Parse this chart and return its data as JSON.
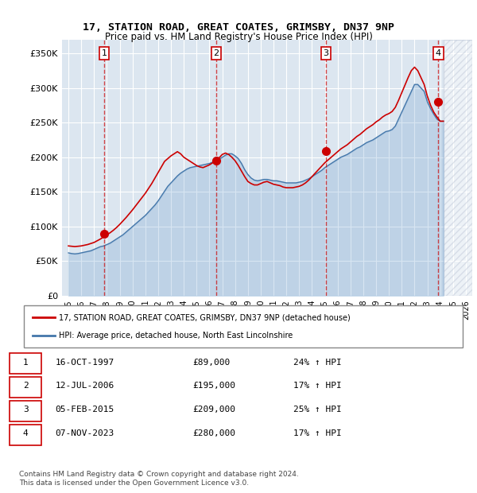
{
  "title1": "17, STATION ROAD, GREAT COATES, GRIMSBY, DN37 9NP",
  "title2": "Price paid vs. HM Land Registry's House Price Index (HPI)",
  "ylabel": "",
  "background_color": "#dce6f0",
  "plot_bg_color": "#dce6f0",
  "hatch_color": "#c0c8d8",
  "ylim": [
    0,
    370000
  ],
  "yticks": [
    0,
    50000,
    100000,
    150000,
    200000,
    250000,
    300000,
    350000
  ],
  "ytick_labels": [
    "£0",
    "£50K",
    "£100K",
    "£150K",
    "£200K",
    "£250K",
    "£300K",
    "£350K"
  ],
  "xlim_start": 1994.5,
  "xlim_end": 2026.5,
  "xticks": [
    1995,
    1996,
    1997,
    1998,
    1999,
    2000,
    2001,
    2002,
    2003,
    2004,
    2005,
    2006,
    2007,
    2008,
    2009,
    2010,
    2011,
    2012,
    2013,
    2014,
    2015,
    2016,
    2017,
    2018,
    2019,
    2020,
    2021,
    2022,
    2023,
    2024,
    2025,
    2026
  ],
  "sale_dates": [
    1997.79,
    2006.53,
    2015.09,
    2023.85
  ],
  "sale_prices": [
    89000,
    195000,
    209000,
    280000
  ],
  "sale_numbers": [
    "1",
    "2",
    "3",
    "4"
  ],
  "red_line_color": "#cc0000",
  "blue_line_color": "#6699cc",
  "hpi_line_color": "#4477aa",
  "sale_marker_color": "#cc0000",
  "legend_label1": "17, STATION ROAD, GREAT COATES, GRIMSBY, DN37 9NP (detached house)",
  "legend_label2": "HPI: Average price, detached house, North East Lincolnshire",
  "table_entries": [
    {
      "num": "1",
      "date": "16-OCT-1997",
      "price": "£89,000",
      "hpi": "24% ↑ HPI"
    },
    {
      "num": "2",
      "date": "12-JUL-2006",
      "price": "£195,000",
      "hpi": "17% ↑ HPI"
    },
    {
      "num": "3",
      "date": "05-FEB-2015",
      "price": "£209,000",
      "hpi": "25% ↑ HPI"
    },
    {
      "num": "4",
      "date": "07-NOV-2023",
      "price": "£280,000",
      "hpi": "17% ↑ HPI"
    }
  ],
  "footnote": "Contains HM Land Registry data © Crown copyright and database right 2024.\nThis data is licensed under the Open Government Licence v3.0.",
  "hpi_data_x": [
    1995.0,
    1995.25,
    1995.5,
    1995.75,
    1996.0,
    1996.25,
    1996.5,
    1996.75,
    1997.0,
    1997.25,
    1997.5,
    1997.75,
    1998.0,
    1998.25,
    1998.5,
    1998.75,
    1999.0,
    1999.25,
    1999.5,
    1999.75,
    2000.0,
    2000.25,
    2000.5,
    2000.75,
    2001.0,
    2001.25,
    2001.5,
    2001.75,
    2002.0,
    2002.25,
    2002.5,
    2002.75,
    2003.0,
    2003.25,
    2003.5,
    2003.75,
    2004.0,
    2004.25,
    2004.5,
    2004.75,
    2005.0,
    2005.25,
    2005.5,
    2005.75,
    2006.0,
    2006.25,
    2006.5,
    2006.75,
    2007.0,
    2007.25,
    2007.5,
    2007.75,
    2008.0,
    2008.25,
    2008.5,
    2008.75,
    2009.0,
    2009.25,
    2009.5,
    2009.75,
    2010.0,
    2010.25,
    2010.5,
    2010.75,
    2011.0,
    2011.25,
    2011.5,
    2011.75,
    2012.0,
    2012.25,
    2012.5,
    2012.75,
    2013.0,
    2013.25,
    2013.5,
    2013.75,
    2014.0,
    2014.25,
    2014.5,
    2014.75,
    2015.0,
    2015.25,
    2015.5,
    2015.75,
    2016.0,
    2016.25,
    2016.5,
    2016.75,
    2017.0,
    2017.25,
    2017.5,
    2017.75,
    2018.0,
    2018.25,
    2018.5,
    2018.75,
    2019.0,
    2019.25,
    2019.5,
    2019.75,
    2020.0,
    2020.25,
    2020.5,
    2020.75,
    2021.0,
    2021.25,
    2021.5,
    2021.75,
    2022.0,
    2022.25,
    2022.5,
    2022.75,
    2023.0,
    2023.25,
    2023.5,
    2023.75,
    2024.0,
    2024.25
  ],
  "hpi_data_y": [
    62000,
    61000,
    60500,
    61000,
    62000,
    63000,
    64000,
    65000,
    67000,
    69000,
    71000,
    72000,
    74000,
    76000,
    79000,
    82000,
    85000,
    88000,
    92000,
    96000,
    100000,
    104000,
    108000,
    112000,
    116000,
    121000,
    126000,
    131000,
    137000,
    144000,
    151000,
    158000,
    163000,
    168000,
    173000,
    177000,
    180000,
    183000,
    185000,
    186000,
    187000,
    188000,
    189000,
    190000,
    191000,
    193000,
    195000,
    197000,
    200000,
    203000,
    205000,
    205000,
    202000,
    198000,
    191000,
    182000,
    175000,
    170000,
    167000,
    166000,
    167000,
    168000,
    168000,
    167000,
    166000,
    166000,
    165000,
    164000,
    163000,
    163000,
    163000,
    163000,
    164000,
    165000,
    167000,
    169000,
    172000,
    175000,
    178000,
    181000,
    185000,
    188000,
    191000,
    194000,
    197000,
    200000,
    202000,
    204000,
    207000,
    210000,
    213000,
    215000,
    218000,
    221000,
    223000,
    225000,
    228000,
    231000,
    234000,
    237000,
    238000,
    240000,
    245000,
    255000,
    265000,
    275000,
    285000,
    295000,
    305000,
    305000,
    300000,
    295000,
    280000,
    270000,
    262000,
    255000,
    252000,
    252000
  ],
  "red_line_x": [
    1995.0,
    1995.25,
    1995.5,
    1995.75,
    1996.0,
    1996.25,
    1996.5,
    1996.75,
    1997.0,
    1997.25,
    1997.5,
    1997.75,
    1998.0,
    1998.25,
    1998.5,
    1998.75,
    1999.0,
    1999.25,
    1999.5,
    1999.75,
    2000.0,
    2000.25,
    2000.5,
    2000.75,
    2001.0,
    2001.25,
    2001.5,
    2001.75,
    2002.0,
    2002.25,
    2002.5,
    2002.75,
    2003.0,
    2003.25,
    2003.5,
    2003.75,
    2004.0,
    2004.25,
    2004.5,
    2004.75,
    2005.0,
    2005.25,
    2005.5,
    2005.75,
    2006.0,
    2006.25,
    2006.5,
    2006.75,
    2007.0,
    2007.25,
    2007.5,
    2007.75,
    2008.0,
    2008.25,
    2008.5,
    2008.75,
    2009.0,
    2009.25,
    2009.5,
    2009.75,
    2010.0,
    2010.25,
    2010.5,
    2010.75,
    2011.0,
    2011.25,
    2011.5,
    2011.75,
    2012.0,
    2012.25,
    2012.5,
    2012.75,
    2013.0,
    2013.25,
    2013.5,
    2013.75,
    2014.0,
    2014.25,
    2014.5,
    2014.75,
    2015.0,
    2015.25,
    2015.5,
    2015.75,
    2016.0,
    2016.25,
    2016.5,
    2016.75,
    2017.0,
    2017.25,
    2017.5,
    2017.75,
    2018.0,
    2018.25,
    2018.5,
    2018.75,
    2019.0,
    2019.25,
    2019.5,
    2019.75,
    2020.0,
    2020.25,
    2020.5,
    2020.75,
    2021.0,
    2021.25,
    2021.5,
    2021.75,
    2022.0,
    2022.25,
    2022.5,
    2022.75,
    2023.0,
    2023.25,
    2023.5,
    2023.75,
    2024.0,
    2024.25
  ],
  "red_line_y": [
    72000,
    71500,
    71000,
    71500,
    72000,
    73000,
    74000,
    75500,
    77000,
    79500,
    82000,
    85000,
    88000,
    91000,
    94500,
    98500,
    103000,
    108000,
    113000,
    118500,
    124000,
    130000,
    136000,
    142000,
    148000,
    155000,
    162000,
    170000,
    178000,
    186000,
    194000,
    198000,
    202000,
    205000,
    208000,
    205000,
    200000,
    197000,
    194000,
    191000,
    188000,
    186000,
    185000,
    187000,
    189000,
    192000,
    195000,
    199000,
    204000,
    206000,
    204000,
    200000,
    195000,
    188000,
    180000,
    172000,
    165000,
    162000,
    160000,
    160000,
    162000,
    164000,
    165000,
    163000,
    161000,
    160000,
    159000,
    157000,
    156000,
    156000,
    156000,
    157000,
    158000,
    160000,
    163000,
    167000,
    172000,
    177000,
    182000,
    187000,
    192000,
    196000,
    200000,
    204000,
    208000,
    212000,
    215000,
    218000,
    222000,
    226000,
    230000,
    233000,
    237000,
    241000,
    244000,
    247000,
    251000,
    254000,
    258000,
    261000,
    263000,
    266000,
    272000,
    282000,
    293000,
    304000,
    315000,
    325000,
    330000,
    325000,
    315000,
    305000,
    288000,
    275000,
    265000,
    258000,
    252000,
    252000
  ]
}
